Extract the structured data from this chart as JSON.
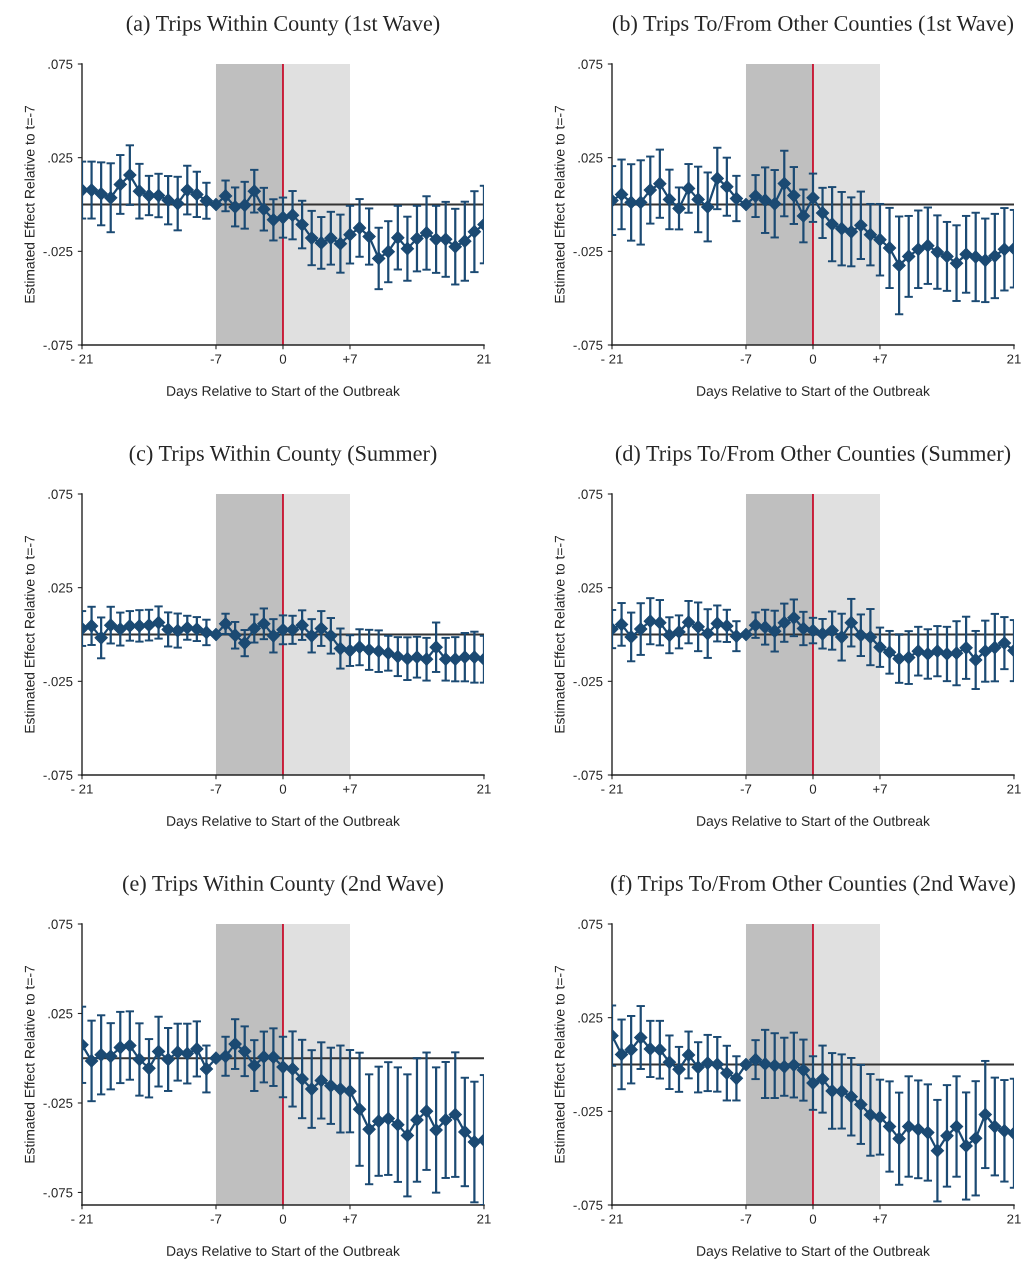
{
  "chart_data": [
    {
      "type": "line",
      "title": "(a) Trips Within County (1st Wave)",
      "xlabel": "Days Relative to Start of the Outbreak",
      "ylabel": "Estimated Effect Relative to t=-7",
      "x": [
        -21,
        -20,
        -19,
        -18,
        -17,
        -16,
        -15,
        -14,
        -13,
        -12,
        -11,
        -10,
        -9,
        -8,
        -7,
        -6,
        -5,
        -4,
        -3,
        -2,
        -1,
        0,
        1,
        2,
        3,
        4,
        5,
        6,
        7,
        8,
        9,
        10,
        11,
        12,
        13,
        14,
        15,
        16,
        17,
        18,
        19,
        20,
        21
      ],
      "series": [
        {
          "color": "#1b4a73",
          "values": [
            0.0077,
            0.0077,
            0.0057,
            0.0036,
            0.0107,
            0.0157,
            0.0071,
            0.0048,
            0.0048,
            0.0023,
            0.0005,
            0.0077,
            0.0054,
            0.002,
            0,
            0.0046,
            -0.0013,
            -0.0004,
            0.0071,
            -0.0025,
            -0.0082,
            -0.007,
            -0.0057,
            -0.0107,
            -0.0179,
            -0.0205,
            -0.018,
            -0.0209,
            -0.0161,
            -0.0125,
            -0.0171,
            -0.0288,
            -0.0252,
            -0.0177,
            -0.0236,
            -0.0182,
            -0.0152,
            -0.0186,
            -0.0186,
            -0.0225,
            -0.0196,
            -0.0145,
            -0.0107
          ],
          "errors": [
            0.0152,
            0.0152,
            0.0168,
            0.0184,
            0.0157,
            0.0159,
            0.0146,
            0.0105,
            0.0116,
            0.0129,
            0.0143,
            0.013,
            0.0121,
            0.0096,
            null,
            0.0082,
            0.0104,
            0.0125,
            0.0114,
            0.0114,
            0.011,
            0.0107,
            0.0129,
            0.0127,
            0.0145,
            0.0138,
            0.0141,
            0.0155,
            0.0154,
            0.0154,
            0.015,
            0.0164,
            0.0163,
            0.017,
            0.0171,
            0.0175,
            0.0196,
            0.0179,
            0.02,
            0.0202,
            0.0211,
            0.0216,
            0.0207
          ]
        }
      ],
      "marker": "diamond",
      "grid": false,
      "xlim": [
        -21,
        21
      ],
      "ylim": [
        -0.075,
        0.075
      ],
      "xticks": [
        {
          "value": -21,
          "label": "- 21"
        },
        {
          "value": -7,
          "label": "-7"
        },
        {
          "value": 0,
          "label": "0"
        },
        {
          "value": 7,
          "label": "+7"
        },
        {
          "value": 21,
          "label": "21"
        }
      ],
      "yticks": [
        {
          "value": -0.075,
          "label": "-.075"
        },
        {
          "value": -0.025,
          "label": "-.025"
        },
        {
          "value": 0.025,
          "label": ".025"
        },
        {
          "value": 0.075,
          "label": ".075"
        }
      ],
      "bands": [
        {
          "axis": "x",
          "from": -7,
          "to": 0,
          "color": "#bfbfbf"
        },
        {
          "axis": "x",
          "from": 0,
          "to": 7,
          "color": "#e0e0e0"
        }
      ],
      "ref_lines": [
        {
          "axis": "y",
          "value": 0,
          "color": "#333333"
        },
        {
          "axis": "x",
          "value": 0,
          "color": "#c8102e"
        }
      ]
    },
    {
      "type": "line",
      "title": "(b) Trips To/From Other Counties (1st Wave)",
      "xlabel": "Days Relative to Start of the Outbreak",
      "ylabel": "Estimated Effect Relative to t=-7",
      "x": [
        -21,
        -20,
        -19,
        -18,
        -17,
        -16,
        -15,
        -14,
        -13,
        -12,
        -11,
        -10,
        -9,
        -8,
        -7,
        -6,
        -5,
        -4,
        -3,
        -2,
        -1,
        0,
        1,
        2,
        3,
        4,
        5,
        6,
        7,
        8,
        9,
        10,
        11,
        12,
        13,
        14,
        15,
        16,
        17,
        18,
        19,
        20,
        21
      ],
      "series": [
        {
          "color": "#1b4a73",
          "values": [
            0.0021,
            0.0054,
            0.0011,
            0.0011,
            0.0077,
            0.0111,
            0.0027,
            -0.0021,
            0.0086,
            0.0027,
            -0.0013,
            0.0139,
            0.0095,
            0.0032,
            0,
            0.0045,
            0.0023,
            0.0004,
            0.0112,
            0.0048,
            -0.0061,
            0.0036,
            -0.0045,
            -0.0105,
            -0.0129,
            -0.0146,
            -0.0111,
            -0.0161,
            -0.0188,
            -0.0232,
            -0.0325,
            -0.0277,
            -0.0239,
            -0.022,
            -0.0254,
            -0.0277,
            -0.0313,
            -0.0266,
            -0.028,
            -0.0298,
            -0.0275,
            -0.0239,
            -0.0236
          ],
          "errors": [
            0.0184,
            0.0186,
            0.0204,
            0.0225,
            0.0179,
            0.0182,
            0.0159,
            0.0112,
            0.013,
            0.0175,
            0.0184,
            0.0164,
            0.0155,
            0.0121,
            null,
            0.0112,
            0.0175,
            0.018,
            0.0175,
            0.0152,
            0.0141,
            0.0129,
            0.0134,
            0.0198,
            0.0196,
            0.0184,
            0.018,
            0.0164,
            0.0191,
            0.0214,
            0.0261,
            0.0216,
            0.0207,
            0.0204,
            0.0196,
            0.0184,
            0.0202,
            0.0205,
            0.0236,
            0.0223,
            0.0225,
            0.022,
            0.0207
          ]
        }
      ],
      "marker": "diamond",
      "grid": false,
      "xlim": [
        -21,
        21
      ],
      "ylim": [
        -0.075,
        0.075
      ],
      "xticks": [
        {
          "value": -21,
          "label": "- 21"
        },
        {
          "value": -7,
          "label": "-7"
        },
        {
          "value": 0,
          "label": "0"
        },
        {
          "value": 7,
          "label": "+7"
        },
        {
          "value": 21,
          "label": "21"
        }
      ],
      "yticks": [
        {
          "value": -0.075,
          "label": "-.075"
        },
        {
          "value": -0.025,
          "label": "-.025"
        },
        {
          "value": 0.025,
          "label": ".025"
        },
        {
          "value": 0.075,
          "label": ".075"
        }
      ],
      "bands": [
        {
          "axis": "x",
          "from": -7,
          "to": 0,
          "color": "#bfbfbf"
        },
        {
          "axis": "x",
          "from": 0,
          "to": 7,
          "color": "#e0e0e0"
        }
      ],
      "ref_lines": [
        {
          "axis": "y",
          "value": 0,
          "color": "#333333"
        },
        {
          "axis": "x",
          "value": 0,
          "color": "#c8102e"
        }
      ]
    },
    {
      "type": "line",
      "title": "(c) Trips Within County (Summer)",
      "xlabel": "Days Relative to Start of the Outbreak",
      "ylabel": "Estimated Effect Relative to t=-7",
      "x": [
        -21,
        -20,
        -19,
        -18,
        -17,
        -16,
        -15,
        -14,
        -13,
        -12,
        -11,
        -10,
        -9,
        -8,
        -7,
        -6,
        -5,
        -4,
        -3,
        -2,
        -1,
        0,
        1,
        2,
        3,
        4,
        5,
        6,
        7,
        8,
        9,
        10,
        11,
        12,
        13,
        14,
        15,
        16,
        17,
        18,
        19,
        20,
        21
      ],
      "series": [
        {
          "color": "#1b4a73",
          "values": [
            0.0032,
            0.0046,
            -0.0018,
            0.005,
            0.0029,
            0.0046,
            0.0046,
            0.005,
            0.0064,
            0.0027,
            0.0021,
            0.0036,
            0.0029,
            0.0011,
            0,
            0.0057,
            -0.0004,
            -0.0046,
            0.0032,
            0.0057,
            -0.0007,
            0.0025,
            0.0025,
            0.005,
            -0.0007,
            0.0032,
            -0.0007,
            -0.0075,
            -0.0086,
            -0.0068,
            -0.0082,
            -0.0089,
            -0.01,
            -0.0118,
            -0.0129,
            -0.0121,
            -0.0132,
            -0.0068,
            -0.0132,
            -0.0132,
            -0.0121,
            -0.0121,
            -0.0132
          ],
          "errors": [
            0.0093,
            0.0102,
            0.0109,
            0.0098,
            0.0088,
            0.0079,
            0.0084,
            0.0082,
            0.0086,
            0.0091,
            0.0091,
            0.0064,
            0.0064,
            0.0068,
            null,
            0.0054,
            0.0071,
            0.007,
            0.0075,
            0.0082,
            0.0089,
            0.0077,
            0.0075,
            0.0079,
            0.0089,
            0.0093,
            0.0095,
            0.0107,
            0.0082,
            0.0096,
            0.0107,
            0.0111,
            0.0093,
            0.0104,
            0.0114,
            0.0109,
            0.0114,
            0.0132,
            0.0114,
            0.0118,
            0.0129,
            0.0136,
            0.0125
          ]
        }
      ],
      "marker": "diamond",
      "grid": false,
      "xlim": [
        -21,
        21
      ],
      "ylim": [
        -0.075,
        0.075
      ],
      "xticks": [
        {
          "value": -21,
          "label": "- 21"
        },
        {
          "value": -7,
          "label": "-7"
        },
        {
          "value": 0,
          "label": "0"
        },
        {
          "value": 7,
          "label": "+7"
        },
        {
          "value": 21,
          "label": "21"
        }
      ],
      "yticks": [
        {
          "value": -0.075,
          "label": "-.075"
        },
        {
          "value": -0.025,
          "label": "-.025"
        },
        {
          "value": 0.025,
          "label": ".025"
        },
        {
          "value": 0.075,
          "label": ".075"
        }
      ],
      "bands": [
        {
          "axis": "x",
          "from": -7,
          "to": 0,
          "color": "#bfbfbf"
        },
        {
          "axis": "x",
          "from": 0,
          "to": 7,
          "color": "#e0e0e0"
        }
      ],
      "ref_lines": [
        {
          "axis": "y",
          "value": 0,
          "color": "#333333"
        },
        {
          "axis": "x",
          "value": 0,
          "color": "#c8102e"
        }
      ]
    },
    {
      "type": "line",
      "title": "(d) Trips To/From Other Counties (Summer)",
      "xlabel": "Days Relative to Start of the Outbreak",
      "ylabel": "Estimated Effect Relative to t=-7",
      "x": [
        -21,
        -20,
        -19,
        -18,
        -17,
        -16,
        -15,
        -14,
        -13,
        -12,
        -11,
        -10,
        -9,
        -8,
        -7,
        -6,
        -5,
        -4,
        -3,
        -2,
        -1,
        0,
        1,
        2,
        3,
        4,
        5,
        6,
        7,
        8,
        9,
        10,
        11,
        12,
        13,
        14,
        15,
        16,
        17,
        18,
        19,
        20,
        21
      ],
      "series": [
        {
          "color": "#1b4a73",
          "values": [
            0.0029,
            0.0054,
            -0.0013,
            0.0029,
            0.0071,
            0.0063,
            -0.0004,
            0.0014,
            0.0066,
            0.0041,
            0.0005,
            0.0059,
            0.0046,
            -0.0009,
            0,
            0.005,
            0.0039,
            0.0018,
            0.0063,
            0.0089,
            0.0032,
            0.0021,
            0.0004,
            0.0021,
            -0.0014,
            0.0063,
            -0.0004,
            -0.0014,
            -0.0068,
            -0.0095,
            -0.0129,
            -0.0123,
            -0.0089,
            -0.0104,
            -0.0089,
            -0.0104,
            -0.01,
            -0.0071,
            -0.0136,
            -0.0089,
            -0.007,
            -0.0046,
            -0.0086
          ],
          "errors": [
            0.0102,
            0.0114,
            0.013,
            0.0138,
            0.0123,
            0.0121,
            0.0096,
            0.0088,
            0.0113,
            0.013,
            0.013,
            0.0096,
            0.0086,
            0.008,
            null,
            0.0068,
            0.0093,
            0.0109,
            0.0102,
            0.0098,
            0.0089,
            0.0068,
            0.0079,
            0.0102,
            0.0125,
            0.0127,
            0.0111,
            0.015,
            0.0105,
            0.0114,
            0.0129,
            0.0141,
            0.013,
            0.0132,
            0.0134,
            0.0145,
            0.0171,
            0.0166,
            0.0155,
            0.0163,
            0.018,
            0.0139,
            0.0163
          ]
        }
      ],
      "marker": "diamond",
      "grid": false,
      "xlim": [
        -21,
        21
      ],
      "ylim": [
        -0.075,
        0.075
      ],
      "xticks": [
        {
          "value": -21,
          "label": "- 21"
        },
        {
          "value": -7,
          "label": "-7"
        },
        {
          "value": 0,
          "label": "0"
        },
        {
          "value": 7,
          "label": "+7"
        },
        {
          "value": 21,
          "label": "21"
        }
      ],
      "yticks": [
        {
          "value": -0.075,
          "label": "-.075"
        },
        {
          "value": -0.025,
          "label": "-.025"
        },
        {
          "value": 0.025,
          "label": ".025"
        },
        {
          "value": 0.075,
          "label": ".075"
        }
      ],
      "bands": [
        {
          "axis": "x",
          "from": -7,
          "to": 0,
          "color": "#bfbfbf"
        },
        {
          "axis": "x",
          "from": 0,
          "to": 7,
          "color": "#e0e0e0"
        }
      ],
      "ref_lines": [
        {
          "axis": "y",
          "value": 0,
          "color": "#333333"
        },
        {
          "axis": "x",
          "value": 0,
          "color": "#c8102e"
        }
      ]
    },
    {
      "type": "line",
      "title": "(e) Trips Within County (2nd Wave)",
      "xlabel": "Days Relative to Start of the Outbreak",
      "ylabel": "Estimated Effect Relative to t=-7",
      "x": [
        -21,
        -20,
        -19,
        -18,
        -17,
        -16,
        -15,
        -14,
        -13,
        -12,
        -11,
        -10,
        -9,
        -8,
        -7,
        -6,
        -5,
        -4,
        -3,
        -2,
        -1,
        0,
        1,
        2,
        3,
        4,
        5,
        6,
        7,
        8,
        9,
        10,
        11,
        12,
        13,
        14,
        15,
        16,
        17,
        18,
        19,
        20,
        21
      ],
      "series": [
        {
          "color": "#1b4a73",
          "values": [
            0.0075,
            -0.0015,
            0.0019,
            0.0011,
            0.006,
            0.0071,
            -0.0007,
            -0.0056,
            0.0037,
            -0.0007,
            0.0034,
            0.0026,
            0.0052,
            -0.006,
            0,
            0.0011,
            0.0079,
            0.0039,
            -0.0041,
            0.0007,
            0.0006,
            -0.0049,
            -0.006,
            -0.0116,
            -0.0172,
            -0.0124,
            -0.0154,
            -0.0172,
            -0.0184,
            -0.0285,
            -0.0397,
            -0.0352,
            -0.0337,
            -0.0371,
            -0.0431,
            -0.0345,
            -0.0296,
            -0.0401,
            -0.0345,
            -0.0315,
            -0.0412,
            -0.0468,
            -0.0457
          ],
          "errors": [
            0.0213,
            0.0225,
            0.0221,
            0.0185,
            0.0199,
            0.0191,
            0.0202,
            0.0163,
            0.0195,
            0.0176,
            0.0159,
            0.0167,
            0.0154,
            0.0131,
            null,
            0.0109,
            0.0139,
            0.0139,
            0.0142,
            0.0142,
            0.0161,
            0.0169,
            0.021,
            0.0219,
            0.0217,
            0.0213,
            0.0213,
            0.0243,
            0.023,
            0.0316,
            0.0307,
            0.0305,
            0.0315,
            0.032,
            0.0341,
            0.0345,
            0.0328,
            0.035,
            0.0324,
            0.0348,
            0.0303,
            0.0337,
            0.0363
          ]
        }
      ],
      "marker": "diamond",
      "grid": false,
      "xlim": [
        -21,
        21
      ],
      "ylim": [
        -0.082,
        0.075
      ],
      "xticks": [
        {
          "value": -21,
          "label": "- 21"
        },
        {
          "value": -7,
          "label": "-7"
        },
        {
          "value": 0,
          "label": "0"
        },
        {
          "value": 7,
          "label": "+7"
        },
        {
          "value": 21,
          "label": "21"
        }
      ],
      "yticks": [
        {
          "value": -0.075,
          "label": "-.075"
        },
        {
          "value": -0.025,
          "label": "-.025"
        },
        {
          "value": 0.025,
          "label": ".025"
        },
        {
          "value": 0.075,
          "label": ".075"
        }
      ],
      "bands": [
        {
          "axis": "x",
          "from": -7,
          "to": 0,
          "color": "#bfbfbf"
        },
        {
          "axis": "x",
          "from": 0,
          "to": 7,
          "color": "#e0e0e0"
        }
      ],
      "ref_lines": [
        {
          "axis": "y",
          "value": 0,
          "color": "#333333"
        },
        {
          "axis": "x",
          "value": 0,
          "color": "#c8102e"
        }
      ]
    },
    {
      "type": "line",
      "title": "(f) Trips To/From Other Counties (2nd Wave)",
      "xlabel": "Days Relative to Start of the Outbreak",
      "ylabel": "Estimated Effect Relative to t=-7",
      "x": [
        -21,
        -20,
        -19,
        -18,
        -17,
        -16,
        -15,
        -14,
        -13,
        -12,
        -11,
        -10,
        -9,
        -8,
        -7,
        -6,
        -5,
        -4,
        -3,
        -2,
        -1,
        0,
        1,
        2,
        3,
        4,
        5,
        6,
        7,
        8,
        9,
        10,
        11,
        12,
        13,
        14,
        15,
        16,
        17,
        18,
        19,
        20,
        21
      ],
      "series": [
        {
          "color": "#1b4a73",
          "values": [
            0.0154,
            0.0054,
            0.0079,
            0.0144,
            0.0083,
            0.0079,
            0.0012,
            -0.0026,
            0.0051,
            -0.0015,
            0.0008,
            0.0001,
            -0.0046,
            -0.0074,
            0,
            0.0026,
            0.0003,
            -0.0006,
            -0.0012,
            -0.0003,
            -0.003,
            -0.0099,
            -0.0078,
            -0.0141,
            -0.0144,
            -0.0172,
            -0.0213,
            -0.0269,
            -0.0281,
            -0.0331,
            -0.0396,
            -0.0331,
            -0.0346,
            -0.0363,
            -0.046,
            -0.0381,
            -0.0331,
            -0.0435,
            -0.0394,
            -0.0267,
            -0.0331,
            -0.0354,
            -0.0367
          ],
          "errors": [
            0.0161,
            0.0186,
            0.018,
            0.0168,
            0.015,
            0.0154,
            0.0143,
            0.012,
            0.0125,
            0.0134,
            0.015,
            0.0146,
            0.0146,
            0.0118,
            null,
            0.0104,
            0.0182,
            0.0173,
            0.0155,
            0.0173,
            0.0163,
            0.0143,
            0.0179,
            0.0202,
            0.0198,
            0.0207,
            0.0211,
            0.0218,
            0.02,
            0.0241,
            0.0246,
            0.0268,
            0.0261,
            0.0257,
            0.0271,
            0.0271,
            0.0268,
            0.0286,
            0.0305,
            0.0286,
            0.0261,
            0.0271,
            0.0291
          ]
        }
      ],
      "marker": "diamond",
      "grid": false,
      "xlim": [
        -21,
        21
      ],
      "ylim": [
        -0.075,
        0.075
      ],
      "xticks": [
        {
          "value": -21,
          "label": "- 21"
        },
        {
          "value": -7,
          "label": "-7"
        },
        {
          "value": 0,
          "label": "0"
        },
        {
          "value": 7,
          "label": "+7"
        },
        {
          "value": 21,
          "label": "21"
        }
      ],
      "yticks": [
        {
          "value": -0.075,
          "label": "-.075"
        },
        {
          "value": -0.025,
          "label": "-.025"
        },
        {
          "value": 0.025,
          "label": ".025"
        },
        {
          "value": 0.075,
          "label": ".075"
        }
      ],
      "bands": [
        {
          "axis": "x",
          "from": -7,
          "to": 0,
          "color": "#bfbfbf"
        },
        {
          "axis": "x",
          "from": 0,
          "to": 7,
          "color": "#e0e0e0"
        }
      ],
      "ref_lines": [
        {
          "axis": "y",
          "value": 0,
          "color": "#333333"
        },
        {
          "axis": "x",
          "value": 0,
          "color": "#c8102e"
        }
      ]
    }
  ]
}
